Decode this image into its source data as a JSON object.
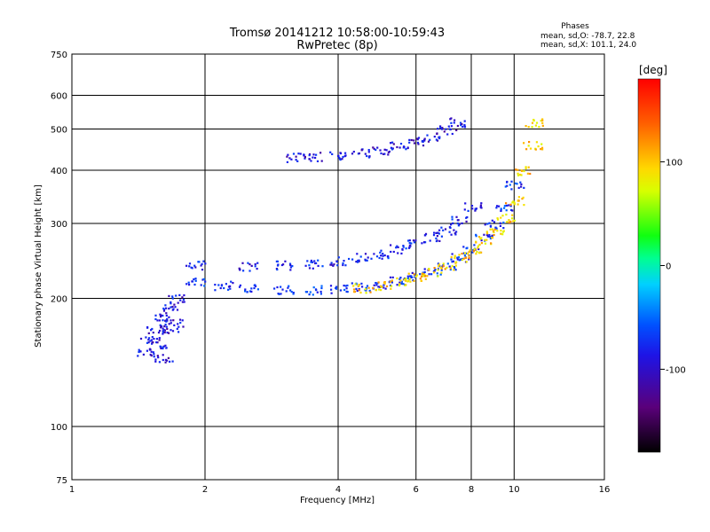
{
  "chart_data": {
    "type": "scatter",
    "title": "Tromsø 20141212 10:58:00-10:59:43",
    "subtitle": "RwPretec (8p)",
    "xlabel": "Frequency [MHz]",
    "ylabel": "Stationary phase Virtual Height [km]",
    "xscale": "log",
    "yscale": "log",
    "xlim": [
      1,
      16
    ],
    "ylim": [
      75,
      750
    ],
    "grid": true,
    "x_ticks": [
      1,
      2,
      4,
      6,
      8,
      10,
      16
    ],
    "y_ticks": [
      75,
      100,
      200,
      300,
      400,
      500,
      600,
      750
    ],
    "annotation": {
      "heading": "Phases",
      "line1": "mean, sd,O: -78.7, 22.8",
      "line2": "mean, sd,X: 101.1, 24.0"
    },
    "colorbar": {
      "label": "[deg]",
      "range": [
        -180,
        180
      ],
      "ticks": [
        100,
        0,
        -100
      ],
      "colormap": "rainbow (black - purple - blue - cyan - green - yellow - red)"
    },
    "series": [
      {
        "description": "E-region trace near 2 MHz (phase ~ -100)",
        "color_value": -100,
        "points": [
          [
            1.45,
            150
          ],
          [
            1.5,
            160
          ],
          [
            1.55,
            170
          ],
          [
            1.6,
            180
          ],
          [
            1.65,
            190
          ],
          [
            1.7,
            200
          ],
          [
            1.6,
            145
          ],
          [
            1.55,
            155
          ],
          [
            1.65,
            170
          ],
          [
            1.7,
            175
          ]
        ]
      },
      {
        "description": "F1 lower trace (O-mode, phase ~ -80)",
        "color_value": -80,
        "points": [
          [
            1.9,
            220
          ],
          [
            2.2,
            215
          ],
          [
            2.5,
            212
          ],
          [
            3.0,
            210
          ],
          [
            3.5,
            210
          ],
          [
            4.0,
            211
          ],
          [
            4.5,
            213
          ],
          [
            5.0,
            216
          ],
          [
            5.5,
            220
          ],
          [
            6.0,
            226
          ],
          [
            6.5,
            232
          ],
          [
            7.0,
            240
          ],
          [
            7.5,
            250
          ],
          [
            8.0,
            262
          ],
          [
            8.5,
            280
          ],
          [
            9.0,
            300
          ],
          [
            9.5,
            330
          ],
          [
            10.0,
            370
          ]
        ]
      },
      {
        "description": "F1 upper trace (O-mode)",
        "color_value": -90,
        "points": [
          [
            1.9,
            240
          ],
          [
            2.5,
            238
          ],
          [
            3.0,
            240
          ],
          [
            3.5,
            242
          ],
          [
            4.0,
            245
          ],
          [
            4.5,
            250
          ],
          [
            5.0,
            255
          ],
          [
            5.5,
            262
          ],
          [
            6.0,
            270
          ],
          [
            6.5,
            280
          ],
          [
            7.0,
            290
          ],
          [
            7.5,
            305
          ],
          [
            8.0,
            330
          ]
        ]
      },
      {
        "description": "F2 trace (O-mode)",
        "color_value": -100,
        "points": [
          [
            3.2,
            430
          ],
          [
            3.5,
            432
          ],
          [
            4.0,
            435
          ],
          [
            4.5,
            440
          ],
          [
            5.0,
            448
          ],
          [
            5.5,
            458
          ],
          [
            6.0,
            468
          ],
          [
            6.5,
            480
          ],
          [
            7.0,
            500
          ],
          [
            7.5,
            520
          ]
        ]
      },
      {
        "description": "X-mode trace (phase ~ +100)",
        "color_value": 100,
        "points": [
          [
            4.5,
            212
          ],
          [
            5.0,
            215
          ],
          [
            5.5,
            219
          ],
          [
            6.0,
            225
          ],
          [
            6.5,
            232
          ],
          [
            7.0,
            240
          ],
          [
            7.5,
            250
          ],
          [
            8.0,
            262
          ],
          [
            8.5,
            275
          ],
          [
            9.0,
            290
          ],
          [
            9.5,
            310
          ],
          [
            10.0,
            340
          ],
          [
            10.5,
            400
          ],
          [
            11.0,
            460
          ],
          [
            11.0,
            520
          ]
        ]
      }
    ]
  }
}
